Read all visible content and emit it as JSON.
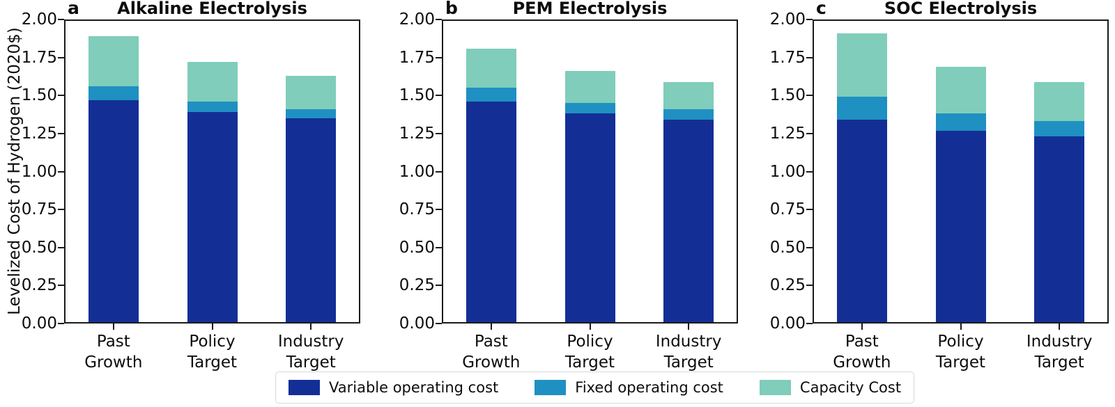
{
  "figure": {
    "y_axis_label": "Levelized Cost of Hydrogen (2020$)",
    "background": "#ffffff",
    "legend": {
      "position": "bottom",
      "items": [
        {
          "key": "variable",
          "label": "Variable operating cost",
          "color": "#132f96"
        },
        {
          "key": "fixed",
          "label": "Fixed operating cost",
          "color": "#1f90c2"
        },
        {
          "key": "capacity",
          "label": "Capacity Cost",
          "color": "#7fcdba"
        }
      ]
    }
  },
  "chart_data": [
    {
      "type": "bar",
      "stacked": true,
      "panel_letter": "a",
      "title": "Alkaline Electrolysis",
      "categories": [
        "Past\nGrowth",
        "Policy\nTarget",
        "Industry\nTarget"
      ],
      "series": [
        {
          "name": "Variable operating cost",
          "key": "variable",
          "color": "#132f96",
          "values": [
            1.47,
            1.39,
            1.35
          ]
        },
        {
          "name": "Fixed operating cost",
          "key": "fixed",
          "color": "#1f90c2",
          "values": [
            0.09,
            0.07,
            0.06
          ]
        },
        {
          "name": "Capacity Cost",
          "key": "capacity",
          "color": "#7fcdba",
          "values": [
            0.33,
            0.26,
            0.22
          ]
        }
      ],
      "totals": [
        1.89,
        1.72,
        1.63
      ],
      "ylim": [
        0,
        2.0
      ],
      "ytick_step": 0.25,
      "grid": false
    },
    {
      "type": "bar",
      "stacked": true,
      "panel_letter": "b",
      "title": "PEM Electrolysis",
      "categories": [
        "Past\nGrowth",
        "Policy\nTarget",
        "Industry\nTarget"
      ],
      "series": [
        {
          "name": "Variable operating cost",
          "key": "variable",
          "color": "#132f96",
          "values": [
            1.46,
            1.38,
            1.34
          ]
        },
        {
          "name": "Fixed operating cost",
          "key": "fixed",
          "color": "#1f90c2",
          "values": [
            0.09,
            0.07,
            0.07
          ]
        },
        {
          "name": "Capacity Cost",
          "key": "capacity",
          "color": "#7fcdba",
          "values": [
            0.26,
            0.21,
            0.18
          ]
        }
      ],
      "totals": [
        1.81,
        1.66,
        1.59
      ],
      "ylim": [
        0,
        2.0
      ],
      "ytick_step": 0.25,
      "grid": false
    },
    {
      "type": "bar",
      "stacked": true,
      "panel_letter": "c",
      "title": "SOC Electrolysis",
      "categories": [
        "Past\nGrowth",
        "Policy\nTarget",
        "Industry\nTarget"
      ],
      "series": [
        {
          "name": "Variable operating cost",
          "key": "variable",
          "color": "#132f96",
          "values": [
            1.34,
            1.27,
            1.23
          ]
        },
        {
          "name": "Fixed operating cost",
          "key": "fixed",
          "color": "#1f90c2",
          "values": [
            0.15,
            0.11,
            0.1
          ]
        },
        {
          "name": "Capacity Cost",
          "key": "capacity",
          "color": "#7fcdba",
          "values": [
            0.42,
            0.31,
            0.26
          ]
        }
      ],
      "totals": [
        1.91,
        1.69,
        1.59
      ],
      "ylim": [
        0,
        2.0
      ],
      "ytick_step": 0.25,
      "grid": false
    }
  ]
}
